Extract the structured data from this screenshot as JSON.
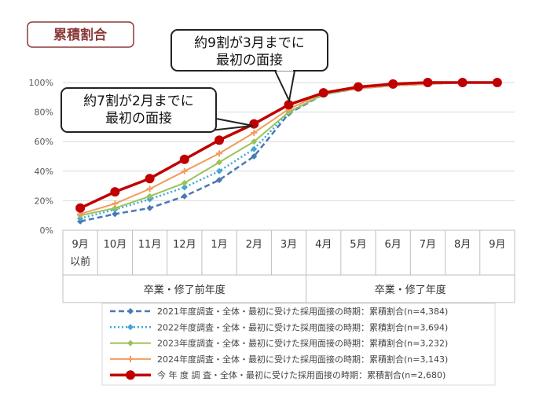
{
  "title": "累積割合",
  "callouts": [
    {
      "lines": [
        "約7割が2月までに",
        "最初の面接"
      ]
    },
    {
      "lines": [
        "約9割が3月までに",
        "最初の面接"
      ]
    }
  ],
  "chart_data": {
    "type": "line",
    "categories": [
      "9月以前",
      "10月",
      "11月",
      "12月",
      "1月",
      "2月",
      "3月",
      "4月",
      "5月",
      "6月",
      "7月",
      "8月",
      "9月"
    ],
    "groups": [
      {
        "label": "卒業・修了前年度"
      },
      {
        "label": "卒業・修了年度"
      }
    ],
    "ylim": [
      0,
      100
    ],
    "yticks": [
      {
        "value": 0,
        "label": "0%"
      },
      {
        "value": 20,
        "label": "20%"
      },
      {
        "value": 40,
        "label": "40%"
      },
      {
        "value": 60,
        "label": "60%"
      },
      {
        "value": 80,
        "label": "80%"
      },
      {
        "value": 100,
        "label": "100%"
      }
    ],
    "grid": true,
    "series": [
      {
        "name": "2021年度調査・全体・最初に受けた採用面接の時期：累積割合(n=4,384)",
        "color": "#4a78b5",
        "style": "dashed",
        "marker": "diamond",
        "values": [
          6,
          11,
          15,
          23,
          34,
          50,
          79,
          92,
          96,
          98,
          99,
          100,
          100
        ]
      },
      {
        "name": "2022年度調査・全体・最初に受けた採用面接の時期：累積割合(n=3,694)",
        "color": "#3fa7d6",
        "style": "dotted",
        "marker": "diamond",
        "values": [
          8,
          14,
          21,
          29,
          40,
          55,
          80,
          92,
          96,
          98,
          99,
          100,
          100
        ]
      },
      {
        "name": "2023年度調査・全体・最初に受けた採用面接の時期：累積割合(n=3,232)",
        "color": "#9bc25b",
        "style": "solid",
        "marker": "diamond",
        "values": [
          10,
          15,
          23,
          32,
          46,
          60,
          80,
          92,
          96,
          98,
          99,
          100,
          100
        ]
      },
      {
        "name": "2024年度調査・全体・最初に受けた採用面接の時期：累積割合(n=3,143)",
        "color": "#f39b5a",
        "style": "solid",
        "marker": "plus",
        "values": [
          11,
          18,
          28,
          40,
          52,
          66,
          82,
          93,
          96,
          98,
          99,
          100,
          100
        ]
      },
      {
        "name": "今 年 度 調 査・全体・最初に受けた採用面接の時期：累積割合(n=2,680)",
        "color": "#c00000",
        "style": "thick",
        "marker": "circle",
        "values": [
          15,
          26,
          35,
          48,
          61,
          72,
          85,
          93,
          97,
          99,
          100,
          100,
          100
        ]
      }
    ]
  }
}
